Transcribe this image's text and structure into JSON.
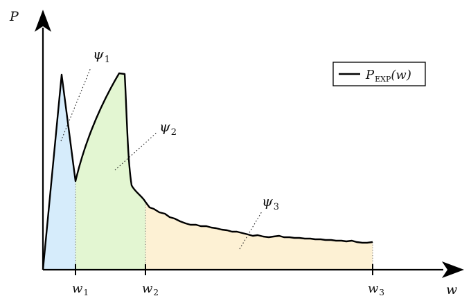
{
  "axes": {
    "y_label": "P",
    "x_label": "w"
  },
  "ticks": [
    {
      "base": "w",
      "sub": "1"
    },
    {
      "base": "w",
      "sub": "2"
    },
    {
      "base": "w",
      "sub": "3"
    }
  ],
  "regions": [
    {
      "base": "ψ",
      "sub": "1",
      "fill": "#d6ecfb"
    },
    {
      "base": "ψ",
      "sub": "2",
      "fill": "#e3f6d2"
    },
    {
      "base": "ψ",
      "sub": "3",
      "fill": "#fdf1d4"
    }
  ],
  "legend": {
    "base": "P",
    "sub": "EXP",
    "arg": "(w)"
  },
  "colors": {
    "curve": "#000000",
    "axis": "#000000"
  }
}
